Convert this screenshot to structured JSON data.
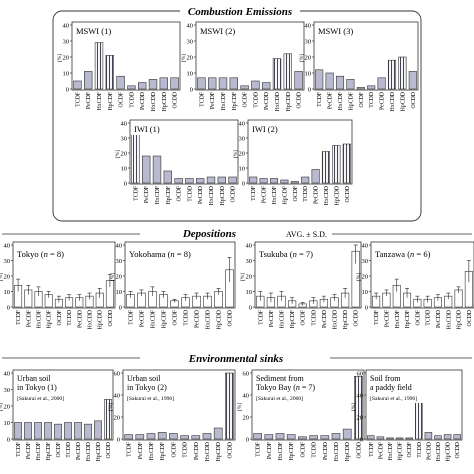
{
  "figure": {
    "sections": [
      {
        "id": "combustion",
        "title": "Combustion Emissions"
      },
      {
        "id": "depositions",
        "title": "Depositions",
        "note": "AVG. ± S.D."
      },
      {
        "id": "sinks",
        "title": "Environmental sinks"
      }
    ],
    "unit_label": "[%]",
    "colors": {
      "bar_fill": "#b9b9cf",
      "hatch_line": "#444455",
      "frame": "#333333",
      "bar_outline": "#333333"
    }
  },
  "chart_data": [
    {
      "type": "bar",
      "section": "combustion",
      "title": "MSWI (1)",
      "ylabel": "[%]",
      "ylim": [
        0,
        40
      ],
      "yticks": [
        0,
        10,
        20,
        30,
        40
      ],
      "categories": [
        "TCDF",
        "PeCDF",
        "HxCDF",
        "HpCDF",
        "OCDF",
        "TCDD",
        "PeCDD",
        "HxCDD",
        "HpCDD",
        "OCDD"
      ],
      "values": [
        5,
        11,
        29,
        21,
        8,
        2,
        4,
        6,
        7,
        7
      ],
      "hatched": [
        false,
        false,
        true,
        true,
        false,
        false,
        false,
        false,
        false,
        false
      ]
    },
    {
      "type": "bar",
      "section": "combustion",
      "title": "MSWI (2)",
      "ylabel": "[%]",
      "ylim": [
        0,
        40
      ],
      "yticks": [
        0,
        10,
        20,
        30,
        40
      ],
      "categories": [
        "TCDF",
        "PeCDF",
        "HxCDF",
        "HpCDF",
        "OCDF",
        "TCDD",
        "PeCDD",
        "HxCDD",
        "HpCDD",
        "OCDD"
      ],
      "values": [
        7,
        7,
        7,
        7,
        2,
        5,
        4,
        19,
        22,
        11
      ],
      "hatched": [
        false,
        false,
        false,
        false,
        false,
        false,
        false,
        true,
        true,
        false
      ]
    },
    {
      "type": "bar",
      "section": "combustion",
      "title": "MSWI (3)",
      "ylabel": "[%]",
      "ylim": [
        0,
        40
      ],
      "yticks": [
        0,
        10,
        20,
        30,
        40
      ],
      "categories": [
        "TCDF",
        "PeCDF",
        "HxCDF",
        "HpCDF",
        "OCDF",
        "TCDD",
        "PeCDD",
        "HxCDD",
        "HpCDD",
        "OCDD"
      ],
      "values": [
        12,
        10,
        8,
        6,
        1,
        2,
        7,
        18,
        20,
        11
      ],
      "hatched": [
        false,
        false,
        false,
        false,
        false,
        false,
        false,
        true,
        true,
        false
      ]
    },
    {
      "type": "bar",
      "section": "combustion",
      "title": "IWI (1)",
      "ylabel": "[%]",
      "ylim": [
        0,
        40
      ],
      "yticks": [
        0,
        10,
        20,
        30,
        40
      ],
      "categories": [
        "TCDF",
        "PeCDF",
        "HxCDF",
        "HpCDF",
        "OCDF",
        "TCDD",
        "PeCDD",
        "HxCDD",
        "HpCDD",
        "OCDD"
      ],
      "values": [
        34,
        18,
        18,
        8,
        3,
        3,
        3,
        4,
        4,
        4
      ],
      "hatched": [
        true,
        false,
        false,
        false,
        false,
        false,
        false,
        false,
        false,
        false
      ]
    },
    {
      "type": "bar",
      "section": "combustion",
      "title": "IWI (2)",
      "ylabel": "[%]",
      "ylim": [
        0,
        40
      ],
      "yticks": [
        0,
        10,
        20,
        30,
        40
      ],
      "categories": [
        "TCDF",
        "PeCDF",
        "HxCDF",
        "HpCDF",
        "OCDF",
        "TCDD",
        "PeCDD",
        "HxCDD",
        "HpCDD",
        "OCDD"
      ],
      "values": [
        4,
        3,
        3,
        2,
        1,
        4,
        9,
        21,
        25,
        26
      ],
      "hatched": [
        false,
        false,
        false,
        false,
        false,
        false,
        false,
        true,
        true,
        true
      ]
    },
    {
      "type": "bar",
      "section": "depositions",
      "title": "Tokyo",
      "n": "8",
      "ylabel": "[%]",
      "ylim": [
        0,
        40
      ],
      "yticks": [
        0,
        10,
        20,
        30,
        40
      ],
      "categories": [
        "TCDF",
        "PeCDF",
        "HxCDF",
        "HpCDF",
        "OCDF",
        "TCDD",
        "PeCDD",
        "HxCDD",
        "HpCDD",
        "OCDD"
      ],
      "values": [
        14,
        11,
        10,
        8,
        5,
        6,
        6,
        7,
        9,
        17
      ],
      "errors": [
        4,
        3,
        3,
        2,
        2,
        2,
        2,
        2,
        3,
        4
      ]
    },
    {
      "type": "bar",
      "section": "depositions",
      "title": "Yokohama",
      "n": "8",
      "ylabel": "[%]",
      "ylim": [
        0,
        40
      ],
      "yticks": [
        0,
        10,
        20,
        30,
        40
      ],
      "categories": [
        "TCDF",
        "PeCDF",
        "HxCDF",
        "HpCDF",
        "OCDF",
        "TCDD",
        "PeCDD",
        "HxCDD",
        "HpCDD",
        "OCDD"
      ],
      "values": [
        8,
        9,
        10,
        8,
        4,
        6,
        7,
        7,
        10,
        24
      ],
      "errors": [
        2,
        2,
        3,
        2,
        1,
        2,
        2,
        2,
        2,
        8
      ]
    },
    {
      "type": "bar",
      "section": "depositions",
      "title": "Tsukuba",
      "n": "7",
      "ylabel": "[%]",
      "ylim": [
        0,
        40
      ],
      "yticks": [
        0,
        10,
        20,
        30,
        40
      ],
      "categories": [
        "TCDF",
        "PeCDF",
        "HxCDF",
        "HpCDF",
        "OCDF",
        "TCDD",
        "PeCDD",
        "HxCDD",
        "HpCDD",
        "OCDD"
      ],
      "values": [
        7,
        6,
        7,
        4,
        2,
        4,
        5,
        6,
        9,
        36
      ],
      "errors": [
        3,
        3,
        3,
        2,
        1,
        2,
        2,
        2,
        3,
        8
      ]
    },
    {
      "type": "bar",
      "section": "depositions",
      "title": "Tanzawa",
      "n": "6",
      "ylabel": "[%]",
      "ylim": [
        0,
        40
      ],
      "yticks": [
        0,
        10,
        20,
        30,
        40
      ],
      "categories": [
        "TCDF",
        "PeCDF",
        "HxCDF",
        "HpCDF",
        "OCDF",
        "TCDD",
        "PeCDD",
        "HxCDD",
        "HpCDD",
        "OCDD"
      ],
      "values": [
        7,
        9,
        14,
        9,
        5,
        5,
        6,
        7,
        11,
        23
      ],
      "errors": [
        2,
        2,
        4,
        3,
        2,
        2,
        2,
        2,
        2,
        7
      ]
    },
    {
      "type": "bar",
      "section": "sinks",
      "title": "Urban soil in Tokyo (1)",
      "title_lines": [
        "Urban soil",
        "in Tokyo (1)"
      ],
      "reference": "[Sakurai et al., 2000]",
      "ylabel": "[%]",
      "ylim": [
        0,
        40
      ],
      "yticks": [
        0,
        10,
        20,
        30,
        40
      ],
      "categories": [
        "TCDF",
        "PeCDF",
        "HxCDF",
        "HpCDF",
        "OCDF",
        "TCDD",
        "PeCDD",
        "HxCDD",
        "HpCDD",
        "OCDD"
      ],
      "values": [
        10,
        10,
        10,
        10,
        9,
        10,
        10,
        9,
        11,
        24
      ],
      "hatched": [
        false,
        false,
        false,
        false,
        false,
        false,
        false,
        false,
        false,
        true
      ]
    },
    {
      "type": "bar",
      "section": "sinks",
      "title": "Urban soil in Tokyo (2)",
      "title_lines": [
        "Urban soil",
        "in Tokyo (2)"
      ],
      "reference": "[Sakurai et al., 1996]",
      "ylabel": "[%]",
      "ylim": [
        0,
        60
      ],
      "yticks": [
        0,
        20,
        40,
        60
      ],
      "categories": [
        "TCDF",
        "PeCDF",
        "HxCDF",
        "HpCDF",
        "OCDF",
        "TCDD",
        "PeCDD",
        "HxCDD",
        "HpCDD",
        "OCDD"
      ],
      "values": [
        4,
        4,
        5,
        6,
        5,
        3,
        3,
        5,
        10,
        60
      ],
      "hatched": [
        false,
        false,
        false,
        false,
        false,
        false,
        false,
        false,
        false,
        true
      ]
    },
    {
      "type": "bar",
      "section": "sinks",
      "title": "Sediment from Tokyo Bay",
      "title_lines": [
        "Sediment from",
        "Tokyo Bay"
      ],
      "n": "7",
      "reference": "[Sakurai et al., 2000]",
      "ylabel": "[%]",
      "ylim": [
        0,
        60
      ],
      "yticks": [
        0,
        20,
        40,
        60
      ],
      "categories": [
        "TCDF",
        "PeCDF",
        "HxCDF",
        "HpCDF",
        "OCDF",
        "TCDD",
        "PeCDD",
        "HxCDD",
        "HpCDD",
        "OCDD"
      ],
      "values": [
        5,
        4,
        5,
        4,
        2,
        3,
        3,
        5,
        9,
        57
      ],
      "hatched": [
        false,
        false,
        false,
        false,
        false,
        false,
        false,
        false,
        false,
        true
      ]
    },
    {
      "type": "bar",
      "section": "sinks",
      "title": "Soil from a paddy field",
      "title_lines": [
        "Soil from",
        "a paddy field"
      ],
      "reference": "[Sakurai et al., 1996]",
      "ylabel": "[%]",
      "ylim": [
        0,
        60
      ],
      "yticks": [
        0,
        20,
        40,
        60
      ],
      "categories": [
        "TCDF",
        "PeCDF",
        "HxCDF",
        "HpCDF",
        "OCDF",
        "TCDD",
        "PeCDD",
        "HxCDD",
        "HpCDD",
        "OCDD"
      ],
      "values": [
        3,
        2,
        1,
        1,
        1,
        60,
        6,
        3,
        4,
        4
      ],
      "hatched": [
        false,
        false,
        false,
        false,
        false,
        true,
        false,
        false,
        false,
        false
      ]
    }
  ]
}
